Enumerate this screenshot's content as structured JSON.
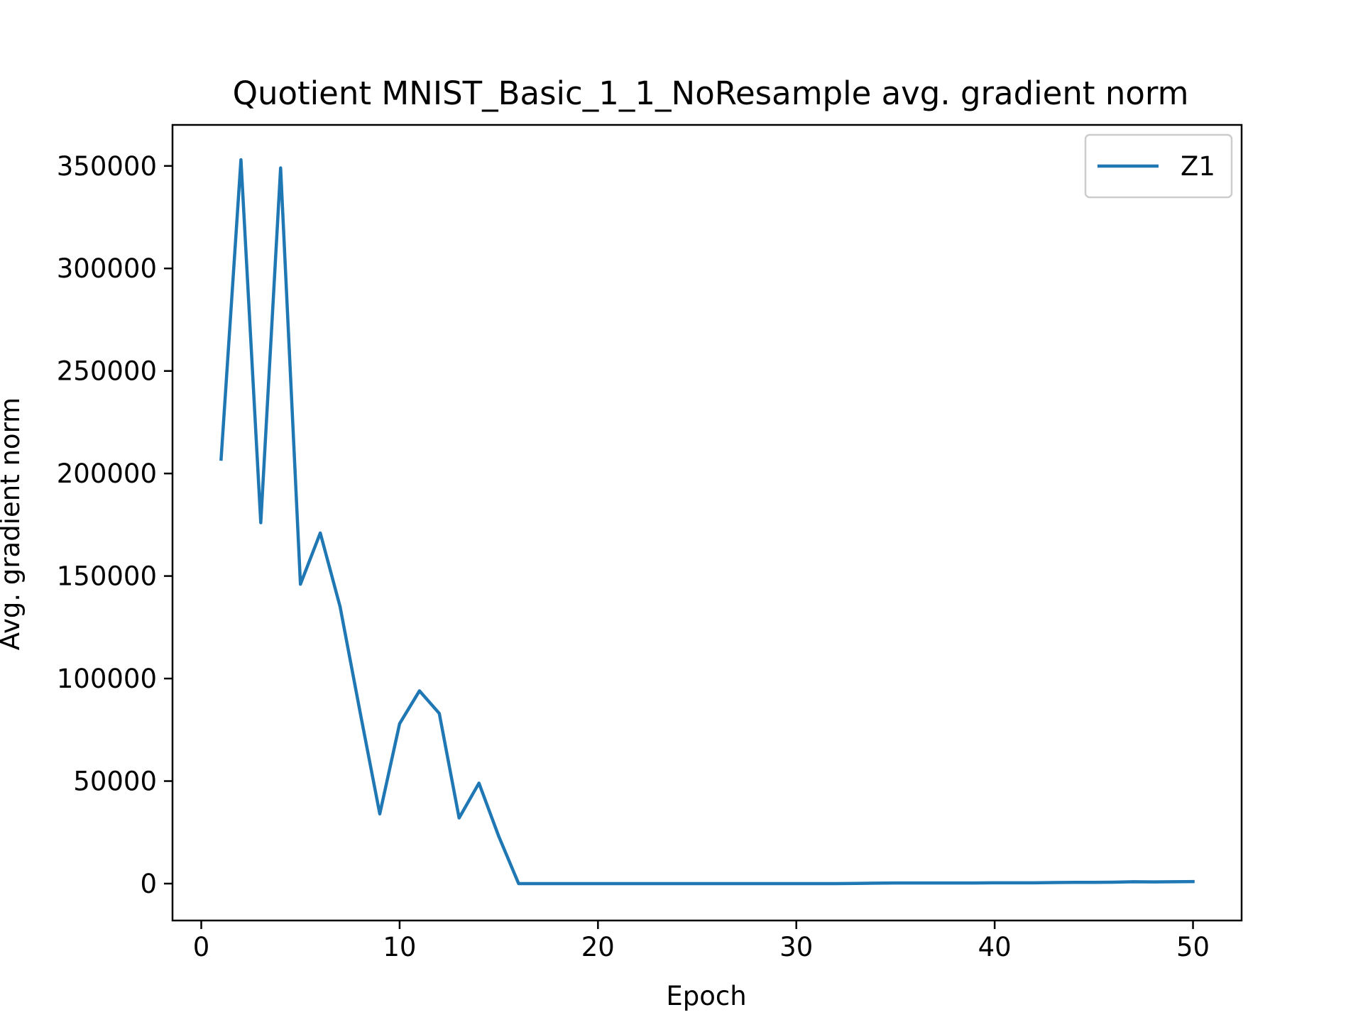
{
  "chart_data": {
    "type": "line",
    "title": "Quotient MNIST_Basic_1_1_NoResample avg. gradient norm",
    "xlabel": "Epoch",
    "ylabel": "Avg. gradient norm",
    "xlim": [
      -1.45,
      52.45
    ],
    "ylim": [
      -18000,
      370000
    ],
    "xticks": [
      0,
      10,
      20,
      30,
      40,
      50
    ],
    "yticks": [
      0,
      50000,
      100000,
      150000,
      200000,
      250000,
      300000,
      350000
    ],
    "xtick_labels": [
      "0",
      "10",
      "20",
      "30",
      "40",
      "50"
    ],
    "ytick_labels": [
      "0",
      "50000",
      "100000",
      "150000",
      "200000",
      "250000",
      "300000",
      "350000"
    ],
    "grid": false,
    "legend_position": "top-right",
    "series": [
      {
        "name": "Z1",
        "color": "#1f77b4",
        "x": [
          1,
          2,
          3,
          4,
          5,
          6,
          7,
          8,
          9,
          10,
          11,
          12,
          13,
          14,
          15,
          16,
          17,
          18,
          19,
          20,
          21,
          22,
          23,
          24,
          25,
          26,
          27,
          28,
          29,
          30,
          31,
          32,
          33,
          34,
          35,
          36,
          37,
          38,
          39,
          40,
          41,
          42,
          43,
          44,
          45,
          46,
          47,
          48,
          49,
          50
        ],
        "y": [
          207000,
          353000,
          176000,
          349000,
          146000,
          171000,
          135000,
          84000,
          34000,
          78000,
          94000,
          83000,
          32000,
          49000,
          23000,
          0,
          0,
          0,
          0,
          0,
          0,
          0,
          0,
          0,
          0,
          0,
          0,
          0,
          0,
          0,
          0,
          0,
          100,
          200,
          300,
          300,
          300,
          300,
          300,
          400,
          400,
          400,
          500,
          600,
          600,
          700,
          900,
          800,
          900,
          1000
        ]
      }
    ]
  }
}
